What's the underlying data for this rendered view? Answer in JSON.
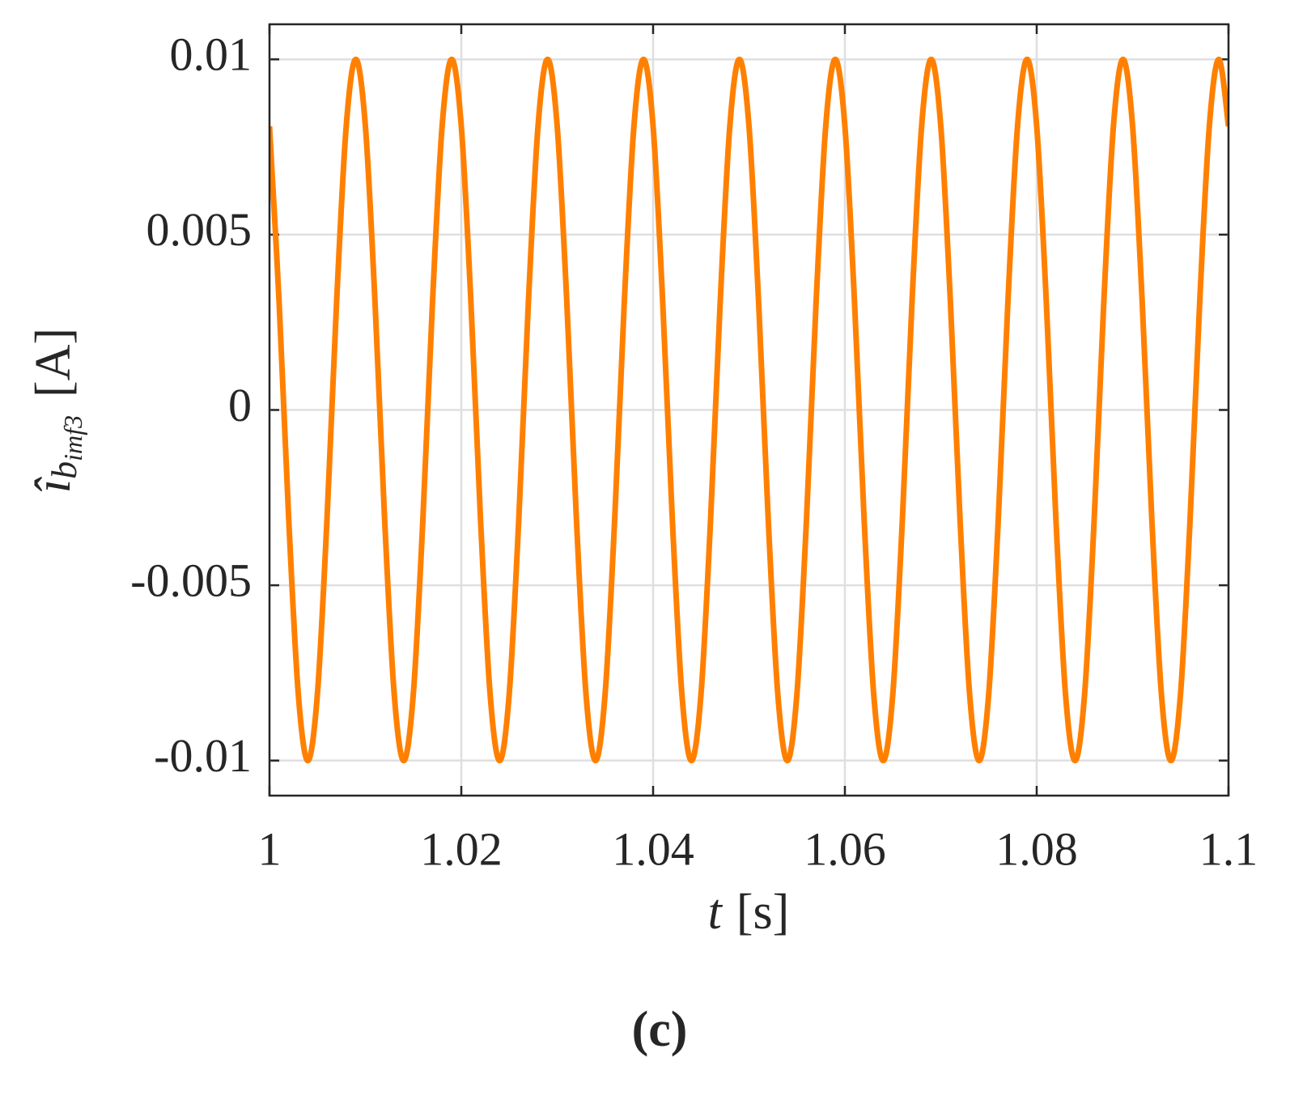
{
  "chart_data": {
    "type": "line",
    "ylabel": {
      "symbol": "î",
      "sub": "b",
      "subsub": "imf3",
      "unit": "[A]"
    },
    "xlabel": {
      "symbol": "t",
      "unit": "[s]"
    },
    "caption": "(c)",
    "x": [
      1,
      1.001,
      1.002,
      1.003,
      1.004,
      1.005,
      1.006,
      1.007,
      1.008,
      1.009,
      1.01,
      1.011,
      1.012,
      1.013,
      1.014,
      1.015,
      1.016,
      1.017,
      1.018,
      1.019,
      1.02,
      1.021,
      1.022,
      1.023,
      1.024,
      1.025,
      1.026,
      1.027,
      1.028,
      1.029,
      1.03,
      1.031,
      1.032,
      1.033,
      1.034,
      1.035,
      1.036,
      1.037,
      1.038,
      1.039,
      1.04,
      1.041,
      1.042,
      1.043,
      1.044,
      1.045,
      1.046,
      1.047,
      1.048,
      1.049,
      1.05,
      1.051,
      1.052,
      1.053,
      1.054,
      1.055,
      1.056,
      1.057,
      1.058,
      1.059,
      1.06,
      1.061,
      1.062,
      1.063,
      1.064,
      1.065,
      1.066,
      1.067,
      1.068,
      1.069,
      1.07,
      1.071,
      1.072,
      1.073,
      1.074,
      1.075,
      1.076,
      1.077,
      1.078,
      1.079,
      1.08,
      1.081,
      1.082,
      1.083,
      1.084,
      1.085,
      1.086,
      1.087,
      1.088,
      1.089,
      1.09,
      1.091,
      1.092,
      1.093,
      1.094,
      1.095,
      1.096,
      1.097,
      1.098,
      1.099,
      1.1
    ],
    "series": [
      {
        "color": "#ff8000",
        "values": [
          0.00809,
          0.00309,
          -0.00309,
          -0.00809,
          -0.01,
          -0.00809,
          -0.00309,
          0.00309,
          0.00809,
          0.01,
          0.00809,
          0.00309,
          -0.00309,
          -0.00809,
          -0.01,
          -0.00809,
          -0.00309,
          0.00309,
          0.00809,
          0.01,
          0.00809,
          0.00309,
          -0.00309,
          -0.00809,
          -0.01,
          -0.00809,
          -0.00309,
          0.00309,
          0.00809,
          0.01,
          0.00809,
          0.00309,
          -0.00309,
          -0.00809,
          -0.01,
          -0.00809,
          -0.00309,
          0.00309,
          0.00809,
          0.01,
          0.00809,
          0.00309,
          -0.00309,
          -0.00809,
          -0.01,
          -0.00809,
          -0.00309,
          0.00309,
          0.00809,
          0.01,
          0.00809,
          0.00309,
          -0.00309,
          -0.00809,
          -0.01,
          -0.00809,
          -0.00309,
          0.00309,
          0.00809,
          0.01,
          0.00809,
          0.00309,
          -0.00309,
          -0.00809,
          -0.01,
          -0.00809,
          -0.00309,
          0.00309,
          0.00809,
          0.01,
          0.00809,
          0.00309,
          -0.00309,
          -0.00809,
          -0.01,
          -0.00809,
          -0.00309,
          0.00309,
          0.00809,
          0.01,
          0.00809,
          0.00309,
          -0.00309,
          -0.00809,
          -0.01,
          -0.00809,
          -0.00309,
          0.00309,
          0.00809,
          0.01,
          0.00809,
          0.00309,
          -0.00309,
          -0.00809,
          -0.01,
          -0.00809,
          -0.00309,
          0.00309,
          0.00809,
          0.01,
          0.00809
        ]
      }
    ],
    "xlim": [
      1,
      1.1
    ],
    "xticks": [
      1,
      1.02,
      1.04,
      1.06,
      1.08,
      1.1
    ],
    "ylim": [
      -0.011,
      0.011
    ],
    "yticks": [
      -0.01,
      -0.005,
      0,
      0.005,
      0.01
    ],
    "grid": true
  }
}
